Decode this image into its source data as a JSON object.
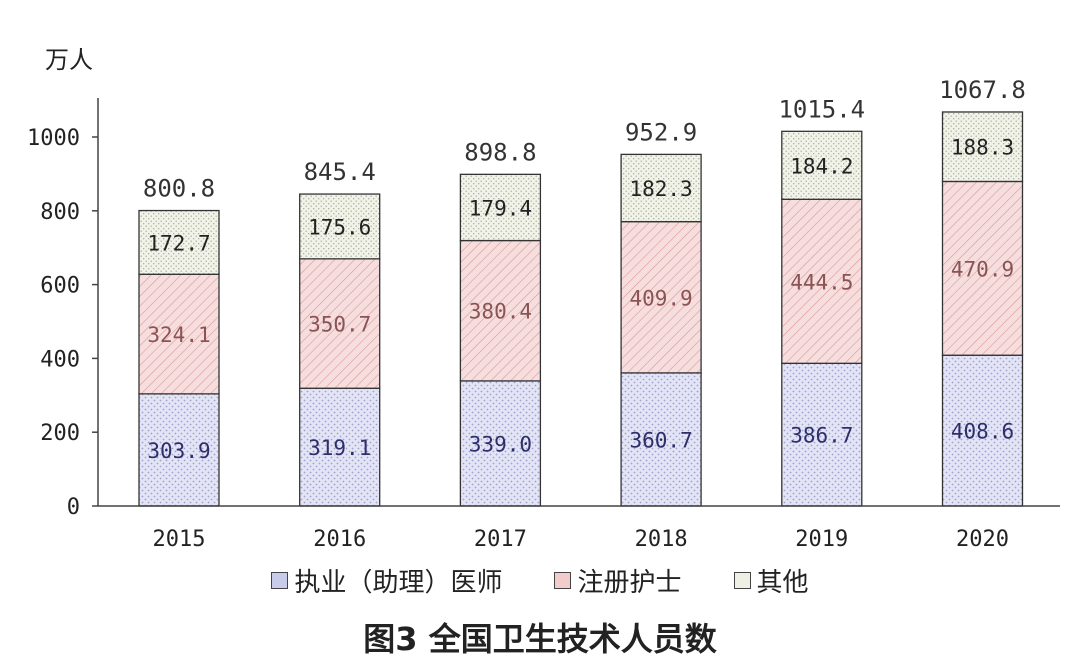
{
  "chart_data": {
    "type": "bar",
    "stacked": true,
    "title": "图3 全国卫生技术人员数",
    "ylabel": "万人",
    "ylim": [
      0,
      1000
    ],
    "yticks": [
      0,
      200,
      400,
      600,
      800,
      1000
    ],
    "categories": [
      "2015",
      "2016",
      "2017",
      "2018",
      "2019",
      "2020"
    ],
    "series": [
      {
        "name": "执业（助理）医师",
        "values": [
          303.9,
          319.1,
          339.0,
          360.7,
          386.7,
          408.6
        ]
      },
      {
        "name": "注册护士",
        "values": [
          324.1,
          350.7,
          380.4,
          409.9,
          444.5,
          470.9
        ]
      },
      {
        "name": "其他",
        "values": [
          172.7,
          175.6,
          179.4,
          182.3,
          184.2,
          188.3
        ]
      }
    ],
    "totals": [
      800.8,
      845.4,
      898.8,
      952.9,
      1015.4,
      1067.8
    ],
    "value_labels": {
      "series": [
        [
          "303.9",
          "319.1",
          "339.0",
          "360.7",
          "386.7",
          "408.6"
        ],
        [
          "324.1",
          "350.7",
          "380.4",
          "409.9",
          "444.5",
          "470.9"
        ],
        [
          "172.7",
          "175.6",
          "179.4",
          "182.3",
          "184.2",
          "188.3"
        ]
      ],
      "totals": [
        "800.8",
        "845.4",
        "898.8",
        "952.9",
        "1015.4",
        "1067.8"
      ]
    },
    "colors": {
      "series_fill": [
        "#e3e4f6",
        "#f7dede",
        "#f1f3e8"
      ],
      "series_pattern": [
        "#9ea2cc",
        "#d99898",
        "#a6a99a"
      ],
      "series_text": [
        "#2d2e6a",
        "#8a5454",
        "#222222"
      ],
      "bar_stroke": "#333333",
      "axis": "#444444"
    },
    "legend_position": "bottom",
    "grid": false
  }
}
